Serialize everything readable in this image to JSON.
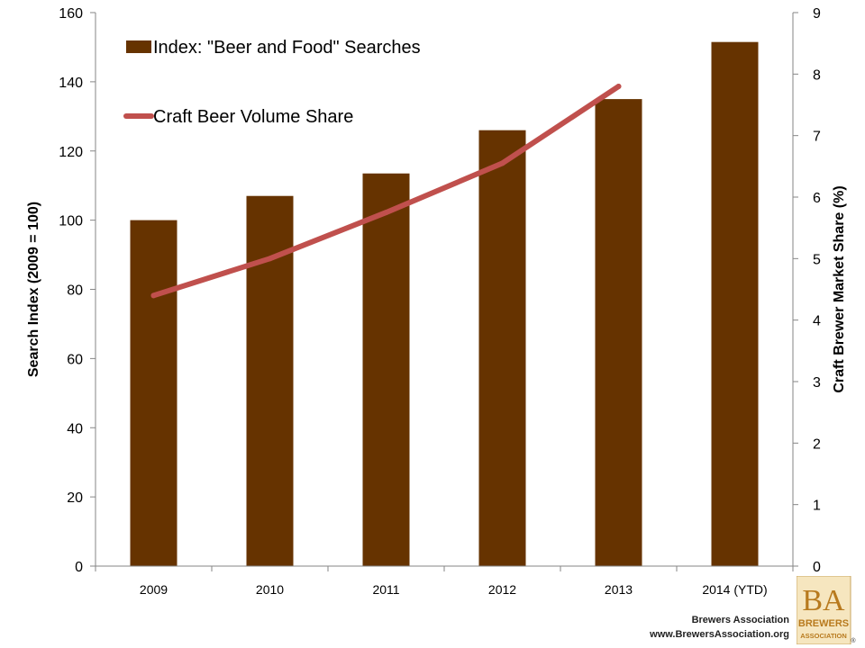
{
  "chart_data": {
    "type": "bar+line",
    "categories": [
      "2009",
      "2010",
      "2011",
      "2012",
      "2013",
      "2014 (YTD)"
    ],
    "series": [
      {
        "name": "Index: \"Beer and Food\" Searches",
        "type": "bar",
        "axis": "left",
        "color": "#663300",
        "values": [
          100,
          107,
          113.5,
          126,
          135,
          151.5
        ]
      },
      {
        "name": "Craft Beer Volume Share",
        "type": "line",
        "axis": "right",
        "color": "#C0504D",
        "values": [
          4.4,
          5.0,
          5.75,
          6.55,
          7.8,
          null
        ]
      }
    ],
    "ylabel_left": "Search Index (2009 = 100)",
    "ylabel_right": "Craft Brewer Market Share (%)",
    "ylim_left": [
      0,
      160
    ],
    "yticks_left": [
      0,
      20,
      40,
      60,
      80,
      100,
      120,
      140,
      160
    ],
    "ylim_right": [
      0,
      9
    ],
    "yticks_right": [
      0,
      1,
      2,
      3,
      4,
      5,
      6,
      7,
      8,
      9
    ],
    "grid": false,
    "legend_position": "top-left"
  },
  "footer": {
    "organization": "Brewers Association",
    "url": "www.BrewersAssociation.org"
  },
  "logo": {
    "monogram": "BA",
    "line1": "BREWERS",
    "line2": "ASSOCIATION",
    "mark": "®"
  }
}
